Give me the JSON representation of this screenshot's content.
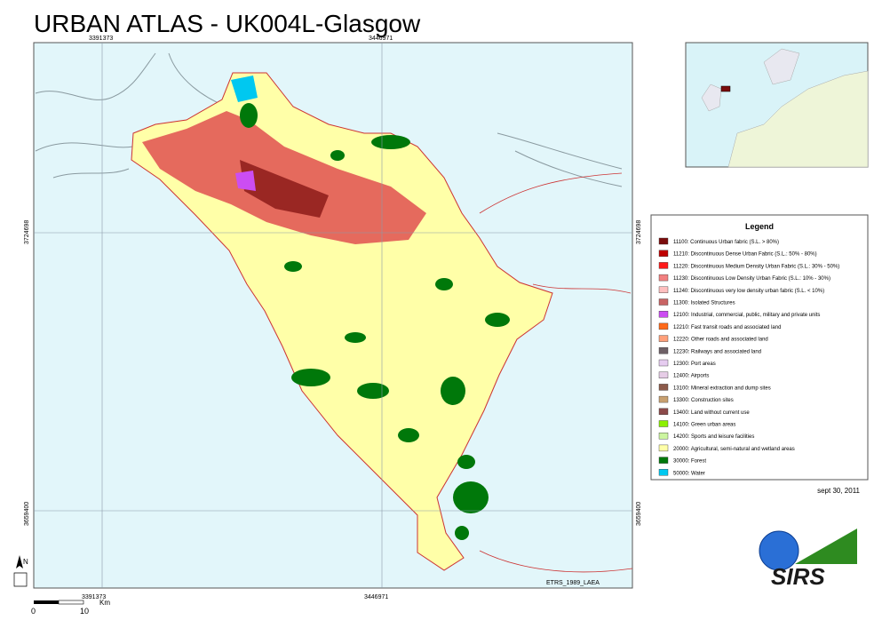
{
  "header": {
    "title": "URBAN ATLAS - UK004L-Glasgow"
  },
  "map": {
    "coords_x": [
      "3391373",
      "3446971"
    ],
    "coords_y": [
      "3724698",
      "3659400"
    ],
    "projection": "ETRS_1989_LAEA"
  },
  "legend": {
    "title": "Legend",
    "items": [
      {
        "label": "11100: Continuous Urban fabric (S.L. > 80%)",
        "color": "#7a0c0c"
      },
      {
        "label": "11210: Discontinuous Dense Urban Fabric (S.L.: 50% - 80%)",
        "color": "#bf0000"
      },
      {
        "label": "11220: Discontinuous Medium Density Urban Fabric (S.L.: 30% - 50%)",
        "color": "#ff1a1a"
      },
      {
        "label": "11230: Discontinuous Low Density Urban Fabric (S.L.: 10% - 30%)",
        "color": "#f28080"
      },
      {
        "label": "11240: Discontinuous very low density urban fabric (S.L. < 10%)",
        "color": "#ffbfbf"
      },
      {
        "label": "11300: Isolated Structures",
        "color": "#c86464"
      },
      {
        "label": "12100: Industrial, commercial, public, military and private units",
        "color": "#cc4df2"
      },
      {
        "label": "12210: Fast transit roads and associated land",
        "color": "#ff6a1a"
      },
      {
        "label": "12220: Other roads and associated land",
        "color": "#ffa07a"
      },
      {
        "label": "12230: Railways and associated land",
        "color": "#6e6066"
      },
      {
        "label": "12300: Port areas",
        "color": "#e6ccf0"
      },
      {
        "label": "12400: Airports",
        "color": "#e6cce6"
      },
      {
        "label": "13100: Mineral extraction and dump sites",
        "color": "#8c5a4a"
      },
      {
        "label": "13300: Construction sites",
        "color": "#c8a070"
      },
      {
        "label": "13400: Land without current use",
        "color": "#8c4a4a"
      },
      {
        "label": "14100: Green urban areas",
        "color": "#8cf000"
      },
      {
        "label": "14200: Sports and leisure facilities",
        "color": "#ccf5a0"
      },
      {
        "label": "20000: Agricultural, semi-natural and wetland areas",
        "color": "#ffffa8"
      },
      {
        "label": "30000: Forest",
        "color": "#00780a"
      },
      {
        "label": "50000: Water",
        "color": "#00c8f0"
      }
    ]
  },
  "date": "sept 30, 2011",
  "scale_bar": {
    "start": "0",
    "end": "10",
    "unit": "Km"
  },
  "north": "N",
  "logo": "SIRS"
}
